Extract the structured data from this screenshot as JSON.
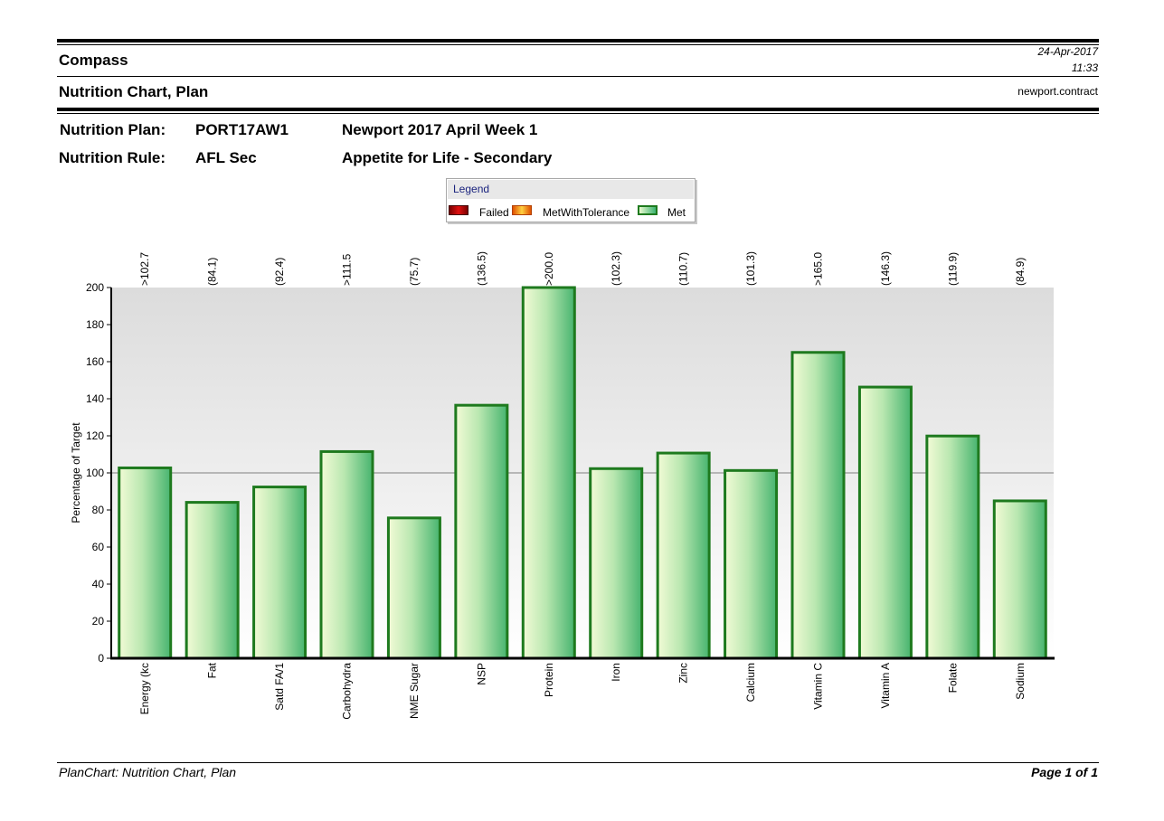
{
  "header": {
    "brand": "Compass",
    "date": "24-Apr-2017",
    "time": "11:33",
    "report_title": "Nutrition Chart, Plan",
    "database": "newport.contract"
  },
  "plan": {
    "plan_label": "Nutrition Plan:",
    "plan_code": "PORT17AW1",
    "plan_name": "Newport 2017 April Week 1",
    "rule_label": "Nutrition Rule:",
    "rule_code": "AFL Sec",
    "rule_name": "Appetite for Life - Secondary"
  },
  "legend": {
    "title": "Legend",
    "items": [
      {
        "label": "Failed",
        "color": "#c00000"
      },
      {
        "label": "MetWithTolerance",
        "color": "#ff8c1a"
      },
      {
        "label": "Met",
        "color": "#3cb371"
      }
    ]
  },
  "chart_data": {
    "type": "bar",
    "ylabel": "Percentage of Target",
    "ylim": [
      0,
      200
    ],
    "yticks": [
      0,
      20,
      40,
      60,
      80,
      100,
      120,
      140,
      160,
      180,
      200
    ],
    "reference_line": 100,
    "categories": [
      "Energy (kc",
      "Fat",
      "Satd FA/1",
      "Carbohydra",
      "NME Sugar",
      "NSP",
      "Protein",
      "Iron",
      "Zinc",
      "Calcium",
      "Vitamin C",
      "Vitamin A",
      "Folate",
      "Sodium"
    ],
    "values": [
      102.7,
      84.1,
      92.4,
      111.5,
      75.7,
      136.5,
      200.0,
      102.3,
      110.7,
      101.3,
      165.0,
      146.3,
      119.9,
      84.9
    ],
    "data_labels": [
      ">102.7",
      "(84.1)",
      "(92.4)",
      ">111.5",
      "(75.7)",
      "(136.5)",
      ">200.0",
      "(102.3)",
      "(110.7)",
      "(101.3)",
      ">165.0",
      "(146.3)",
      "(119.9)",
      "(84.9)"
    ],
    "status": "Met",
    "grid": false
  },
  "footer": {
    "left": "PlanChart: Nutrition Chart, Plan",
    "right": "Page 1 of 1"
  }
}
